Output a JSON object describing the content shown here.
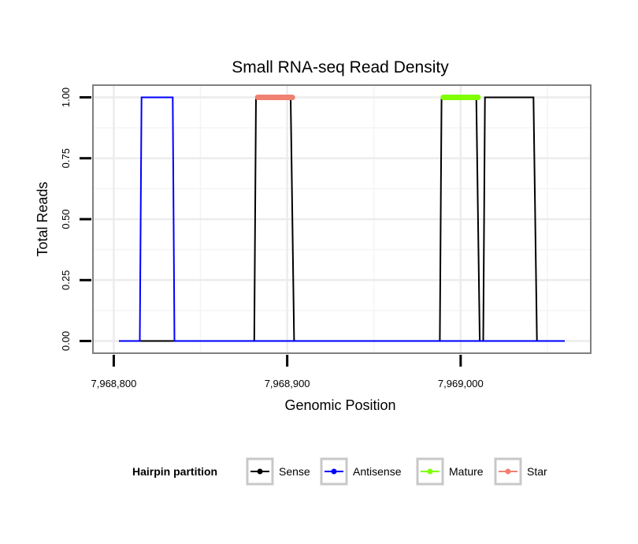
{
  "chart_data": {
    "type": "line",
    "title": "Small RNA-seq Read Density",
    "xlabel": "Genomic Position",
    "ylabel": "Total Reads",
    "xlim": [
      7968788,
      7969075
    ],
    "ylim": [
      -0.05,
      1.05
    ],
    "x_ticks": [
      7968800,
      7968900,
      7969000
    ],
    "x_tick_labels": [
      "7,968,800",
      "7,968,900",
      "7,969,000"
    ],
    "y_ticks": [
      0,
      0.25,
      0.5,
      0.75,
      1
    ],
    "y_tick_labels": [
      "0.00",
      "0.25",
      "0.50",
      "0.75",
      "1.00"
    ],
    "grid": true,
    "legend_title": "Hairpin partition",
    "legend_position": "bottom",
    "series": [
      {
        "name": "Sense",
        "color": "#000000",
        "x": [
          7968811,
          7968881,
          7968882,
          7968902,
          7968904,
          7968988,
          7968989,
          7969009,
          7969011,
          7969013,
          7969014,
          7969042,
          7969044,
          7969060
        ],
        "values": [
          0,
          0,
          1,
          1,
          0,
          0,
          1,
          1,
          0,
          0,
          1,
          1,
          0,
          0
        ]
      },
      {
        "name": "Antisense",
        "color": "#0000ff",
        "x": [
          7968803,
          7968815,
          7968816,
          7968834,
          7968835,
          7968881,
          7968904,
          7968988,
          7969011,
          7969044,
          7969060
        ],
        "values": [
          0,
          0,
          1,
          1,
          0,
          0,
          0,
          0,
          0,
          0,
          0
        ]
      },
      {
        "name": "Mature",
        "color": "#7fff00",
        "x": [
          7968990,
          7969010
        ],
        "values": [
          1,
          1
        ]
      },
      {
        "name": "Star",
        "color": "#f08070",
        "x": [
          7968883,
          7968903
        ],
        "values": [
          1,
          1
        ]
      }
    ]
  }
}
